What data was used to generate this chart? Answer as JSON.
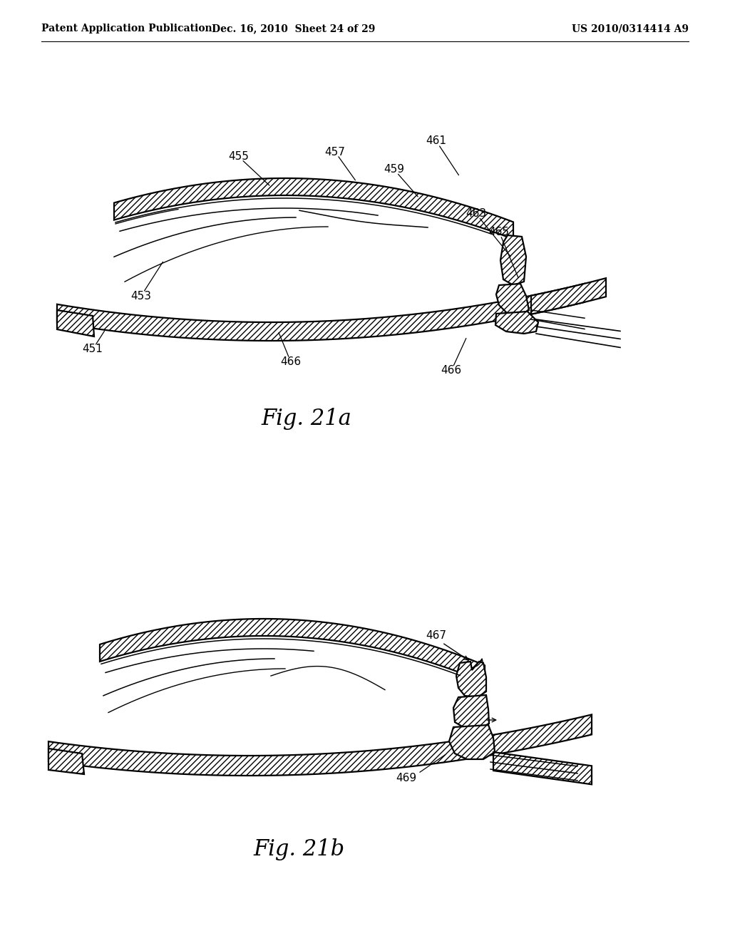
{
  "background_color": "#ffffff",
  "header_left": "Patent Application Publication",
  "header_middle": "Dec. 16, 2010  Sheet 24 of 29",
  "header_right": "US 2010/0314414 A9",
  "fig_label_a": "Fig. 21a",
  "fig_label_b": "Fig. 21b",
  "line_color": "#000000",
  "header_fontsize": 10,
  "label_fontsize": 11,
  "fig_label_fontsize": 22
}
